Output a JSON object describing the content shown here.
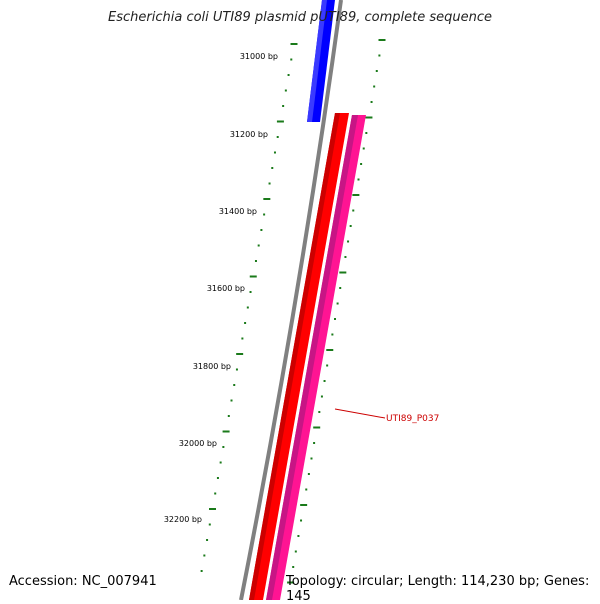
{
  "title": "Escherichia coli UTI89 plasmid pUTI89, complete sequence",
  "footer": {
    "accession": "Accession: NC_007941",
    "stats": "Topology: circular; Length: 114,230 bp; Genes: 145"
  },
  "ruler": {
    "labels": [
      "31000 bp",
      "31200 bp",
      "31400 bp",
      "31600 bp",
      "31800 bp",
      "32000 bp",
      "32200 bp"
    ]
  },
  "feature_label": "UTI89_P037",
  "colors": {
    "backbone": "#808080",
    "blue_feature": "#0000ff",
    "red_feature": "#ff0000",
    "pink_feature": "#ff1493",
    "ticks": "#1a7a1a",
    "label_text": "#cc0000"
  }
}
